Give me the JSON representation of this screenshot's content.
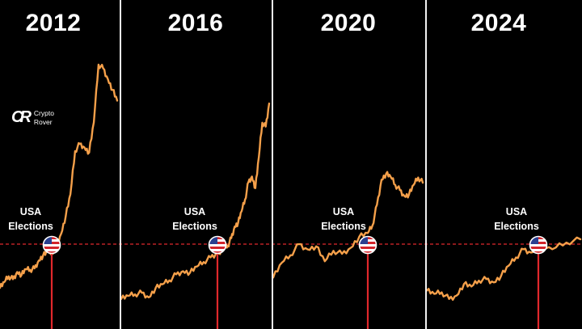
{
  "colors": {
    "background": "#000000",
    "price_line": "#f5a04a",
    "election_line": "#e0282c",
    "divider": "#f2f2f2",
    "text": "#ffffff"
  },
  "logo": {
    "icon": "crypto-rover-logo-icon",
    "line1": "Crypto",
    "line2": "Rover"
  },
  "chart_data": [
    {
      "type": "line",
      "title": "2012",
      "annotation": [
        "USA",
        "Elections"
      ],
      "marker_icon": "us-flag-icon",
      "series": [
        {
          "values": [
            10,
            18,
            26,
            22,
            32,
            28,
            36,
            35,
            37,
            48,
            55,
            60,
            58,
            70,
            85,
            110,
            140,
            200,
            210,
            205,
            198,
            240,
            320,
            315,
            300,
            285,
            270
          ]
        }
      ],
      "election_index": 12
    },
    {
      "type": "line",
      "title": "2016",
      "annotation": [
        "USA",
        "Elections"
      ],
      "marker_icon": "us-flag-icon",
      "series": [
        {
          "values": [
            16,
            20,
            22,
            24,
            18,
            30,
            35,
            40,
            48,
            52,
            50,
            58,
            64,
            70,
            76,
            78,
            82,
            85,
            95,
            110,
            115,
            130,
            145,
            168,
            175,
            160,
            200,
            245,
            240,
            270
          ]
        }
      ],
      "election_index": 14
    },
    {
      "type": "line",
      "title": "2020",
      "annotation": [
        "USA",
        "Elections"
      ],
      "marker_icon": "us-flag-icon",
      "series": [
        {
          "values": [
            40,
            60,
            70,
            85,
            78,
            82,
            62,
            76,
            72,
            80,
            95,
            100,
            110,
            138,
            172,
            180,
            176,
            165,
            158,
            150,
            152,
            165,
            175,
            168
          ]
        }
      ],
      "election_index": 11
    },
    {
      "type": "line",
      "title": "2024",
      "annotation": [
        "USA",
        "Elections"
      ],
      "marker_icon": "us-flag-icon",
      "series": [
        {
          "values": [
            50,
            46,
            48,
            40,
            44,
            58,
            55,
            62,
            64,
            60,
            68,
            80,
            90,
            100,
            96,
            104,
            100,
            108,
            112
          ]
        }
      ],
      "election_index": 15
    }
  ]
}
